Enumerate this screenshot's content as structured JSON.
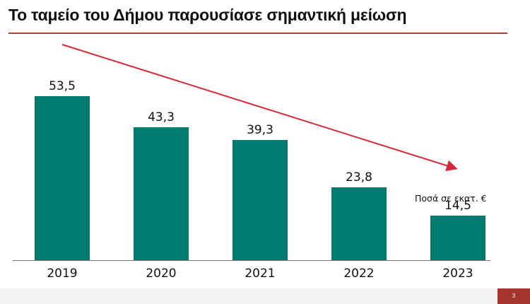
{
  "slide": {
    "title": "Το ταμείο του Δήμου παρουσίασε σημαντική μείωση",
    "unit_label": "Ποσά σε εκατ. €",
    "page_number": "3",
    "colors": {
      "bar": "#007b70",
      "accent": "#c0392b",
      "arrow": "#d42a3a",
      "page_badge": "#a5342d"
    }
  },
  "chart_data": {
    "type": "bar",
    "title": "Το ταμείο του Δήμου παρουσίασε σημαντική μείωση",
    "categories": [
      "2019",
      "2020",
      "2021",
      "2022",
      "2023"
    ],
    "values": [
      53.5,
      43.3,
      39.3,
      23.8,
      14.5
    ],
    "value_labels": [
      "53,5",
      "43,3",
      "39,3",
      "23,8",
      "14,5"
    ],
    "xlabel": "",
    "ylabel": "Ποσά σε εκατ. €",
    "ylim": [
      0,
      60
    ],
    "grid": false,
    "legend": null,
    "annotations": [
      "Downward trend arrow from 2019 to 2023",
      "Ποσά σε εκατ. €"
    ]
  }
}
